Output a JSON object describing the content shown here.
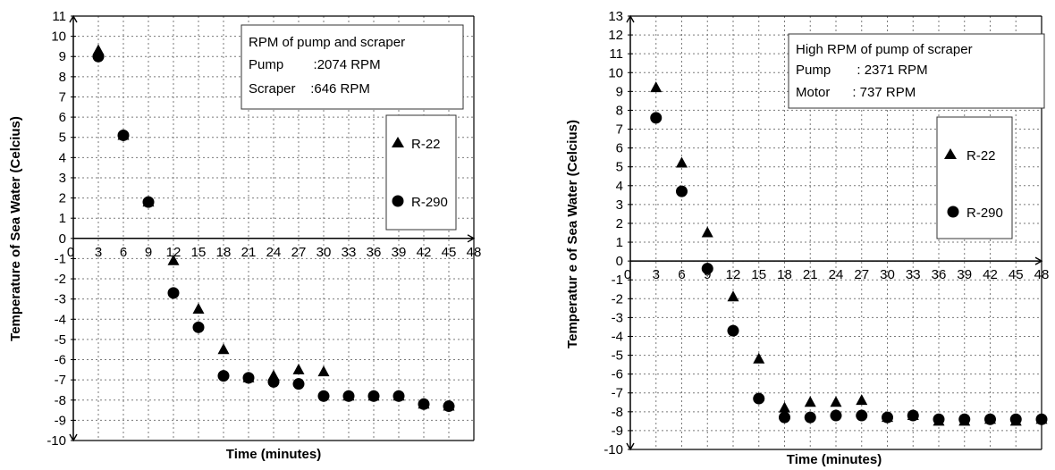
{
  "chart_data": [
    {
      "type": "scatter",
      "title": "",
      "xlabel": "Time  (minutes)",
      "ylabel": "Temperature of Sea Water (Celcius)",
      "xlim": [
        0,
        48
      ],
      "ylim": [
        -10,
        11
      ],
      "xticks": [
        0,
        3,
        6,
        9,
        12,
        15,
        18,
        21,
        24,
        27,
        30,
        33,
        36,
        39,
        42,
        45,
        48
      ],
      "yticks": [
        11,
        10,
        9,
        8,
        7,
        6,
        5,
        4,
        3,
        2,
        1,
        0,
        -1,
        -2,
        -3,
        -4,
        -5,
        -6,
        -7,
        -8,
        -9,
        -10
      ],
      "grid": true,
      "info_box": [
        "RPM of pump and scraper",
        "Pump        :2074 RPM",
        "Scraper    :646 RPM"
      ],
      "series": [
        {
          "name": "R-22",
          "marker": "triangle",
          "x": [
            3,
            6,
            9,
            12,
            15,
            18,
            21,
            24,
            27,
            30,
            33,
            36,
            39,
            42,
            45
          ],
          "y": [
            9.3,
            5.1,
            1.8,
            -1.1,
            -3.5,
            -5.5,
            -6.9,
            -6.8,
            -6.5,
            -6.6,
            -7.8,
            -7.8,
            -7.8,
            -8.2,
            -8.3
          ]
        },
        {
          "name": "R-290",
          "marker": "circle",
          "x": [
            3,
            6,
            9,
            12,
            15,
            18,
            21,
            24,
            27,
            30,
            33,
            36,
            39,
            42,
            45
          ],
          "y": [
            9.0,
            5.1,
            1.8,
            -2.7,
            -4.4,
            -6.8,
            -6.9,
            -7.1,
            -7.2,
            -7.8,
            -7.8,
            -7.8,
            -7.8,
            -8.2,
            -8.3
          ]
        }
      ]
    },
    {
      "type": "scatter",
      "title": "",
      "xlabel": "Time (minutes)",
      "ylabel": "Temperatur e of  Sea Water (Celcius)",
      "xlim": [
        0,
        48
      ],
      "ylim": [
        -10,
        13
      ],
      "xticks": [
        0,
        3,
        6,
        9,
        12,
        15,
        18,
        21,
        24,
        27,
        30,
        33,
        36,
        39,
        42,
        45,
        48
      ],
      "yticks": [
        13,
        12,
        11,
        10,
        9,
        8,
        7,
        6,
        5,
        4,
        3,
        2,
        1,
        0,
        -1,
        -2,
        -3,
        -4,
        -5,
        -6,
        -7,
        -8,
        -9,
        -10
      ],
      "grid": true,
      "info_box": [
        "High RPM of pump of scraper",
        "Pump       : 2371 RPM",
        "Motor      : 737 RPM"
      ],
      "series": [
        {
          "name": "R-22",
          "marker": "triangle",
          "x": [
            3,
            6,
            9,
            12,
            15,
            18,
            21,
            24,
            27,
            30,
            33,
            36,
            39,
            42,
            45,
            48
          ],
          "y": [
            9.2,
            5.2,
            1.5,
            -1.9,
            -5.2,
            -7.8,
            -7.5,
            -7.5,
            -7.4,
            -8.3,
            -8.2,
            -8.5,
            -8.5,
            -8.4,
            -8.5,
            -8.4
          ]
        },
        {
          "name": "R-290",
          "marker": "circle",
          "x": [
            3,
            6,
            9,
            12,
            15,
            18,
            21,
            24,
            27,
            30,
            33,
            36,
            39,
            42,
            45,
            48
          ],
          "y": [
            7.6,
            3.7,
            -0.4,
            -3.7,
            -7.3,
            -8.3,
            -8.3,
            -8.2,
            -8.2,
            -8.3,
            -8.2,
            -8.4,
            -8.4,
            -8.4,
            -8.4,
            -8.4
          ]
        }
      ]
    }
  ]
}
